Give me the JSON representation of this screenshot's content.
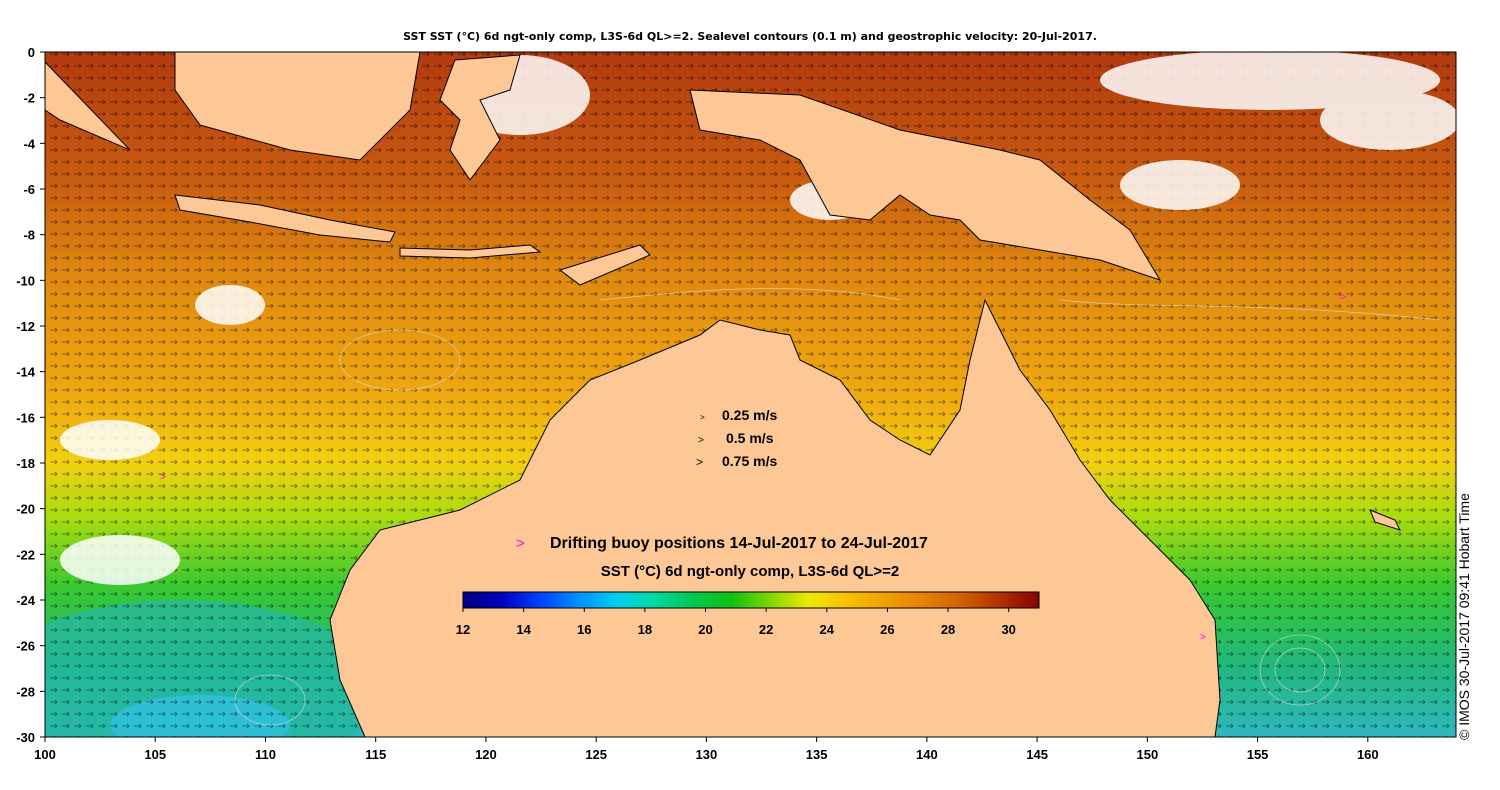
{
  "title": "SST SST (°C) 6d ngt-only comp, L3S-6d QL>=2. Sealevel contours (0.1 m) and geostrophic velocity: 20-Jul-2017.",
  "credit": "© IMOS 30-Jul-2017 09:41 Hobart Time",
  "velocity_legend": {
    "entries": [
      "0.25 m/s",
      "0.5 m/s",
      "0.75 m/s"
    ],
    "speeds": [
      0.25,
      0.5,
      0.75
    ]
  },
  "buoy_legend": {
    "marker": ">",
    "label": "Drifting buoy positions 14-Jul-2017 to 24-Jul-2017",
    "color": "#ff00ff"
  },
  "colorbar": {
    "label": "SST (°C) 6d ngt-only comp, L3S-6d QL>=2",
    "ticks": [
      "12",
      "14",
      "16",
      "18",
      "20",
      "22",
      "24",
      "26",
      "28",
      "30"
    ],
    "range": [
      12,
      31
    ],
    "colors": [
      "#00007f",
      "#0000c0",
      "#0040ff",
      "#0090ff",
      "#00d0f0",
      "#00d8a0",
      "#00c850",
      "#10c010",
      "#80d800",
      "#f0e800",
      "#f8c000",
      "#f0a000",
      "#e88000",
      "#d06000",
      "#b03000",
      "#880000"
    ]
  },
  "map": {
    "x_ticks": [
      "100",
      "105",
      "110",
      "115",
      "120",
      "125",
      "130",
      "135",
      "140",
      "145",
      "150",
      "155",
      "160"
    ],
    "y_ticks": [
      "0",
      "-2",
      "-4",
      "-6",
      "-8",
      "-10",
      "-12",
      "-14",
      "-16",
      "-18",
      "-20",
      "-22",
      "-24",
      "-26",
      "-28",
      "-30"
    ],
    "lon_range": [
      100,
      164
    ],
    "lat_range": [
      -30,
      0
    ],
    "land_color": "#fdc895",
    "cloud_color": "#ffffff"
  }
}
